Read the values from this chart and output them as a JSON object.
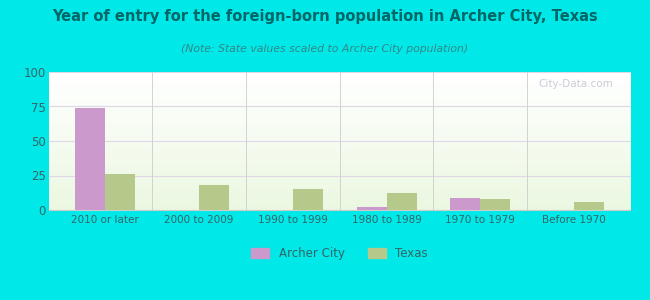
{
  "title": "Year of entry for the foreign-born population in Archer City, Texas",
  "subtitle": "(Note: State values scaled to Archer City population)",
  "categories": [
    "2010 or later",
    "2000 to 2009",
    "1990 to 1999",
    "1980 to 1989",
    "1970 to 1979",
    "Before 1970"
  ],
  "archer_city": [
    74,
    0,
    0,
    2,
    9,
    0
  ],
  "texas": [
    26,
    18,
    15,
    12,
    8,
    6
  ],
  "archer_city_color": "#cc99cc",
  "texas_color": "#b5c98a",
  "background_color": "#00e8e8",
  "ylim": [
    0,
    100
  ],
  "yticks": [
    0,
    25,
    50,
    75,
    100
  ],
  "bar_width": 0.32,
  "watermark": "City-Data.com",
  "legend_labels": [
    "Archer City",
    "Texas"
  ],
  "title_color": "#006666",
  "subtitle_color": "#338888",
  "tick_color": "#336666",
  "grid_color": "#e0d8e8",
  "separator_color": "#cccccc"
}
